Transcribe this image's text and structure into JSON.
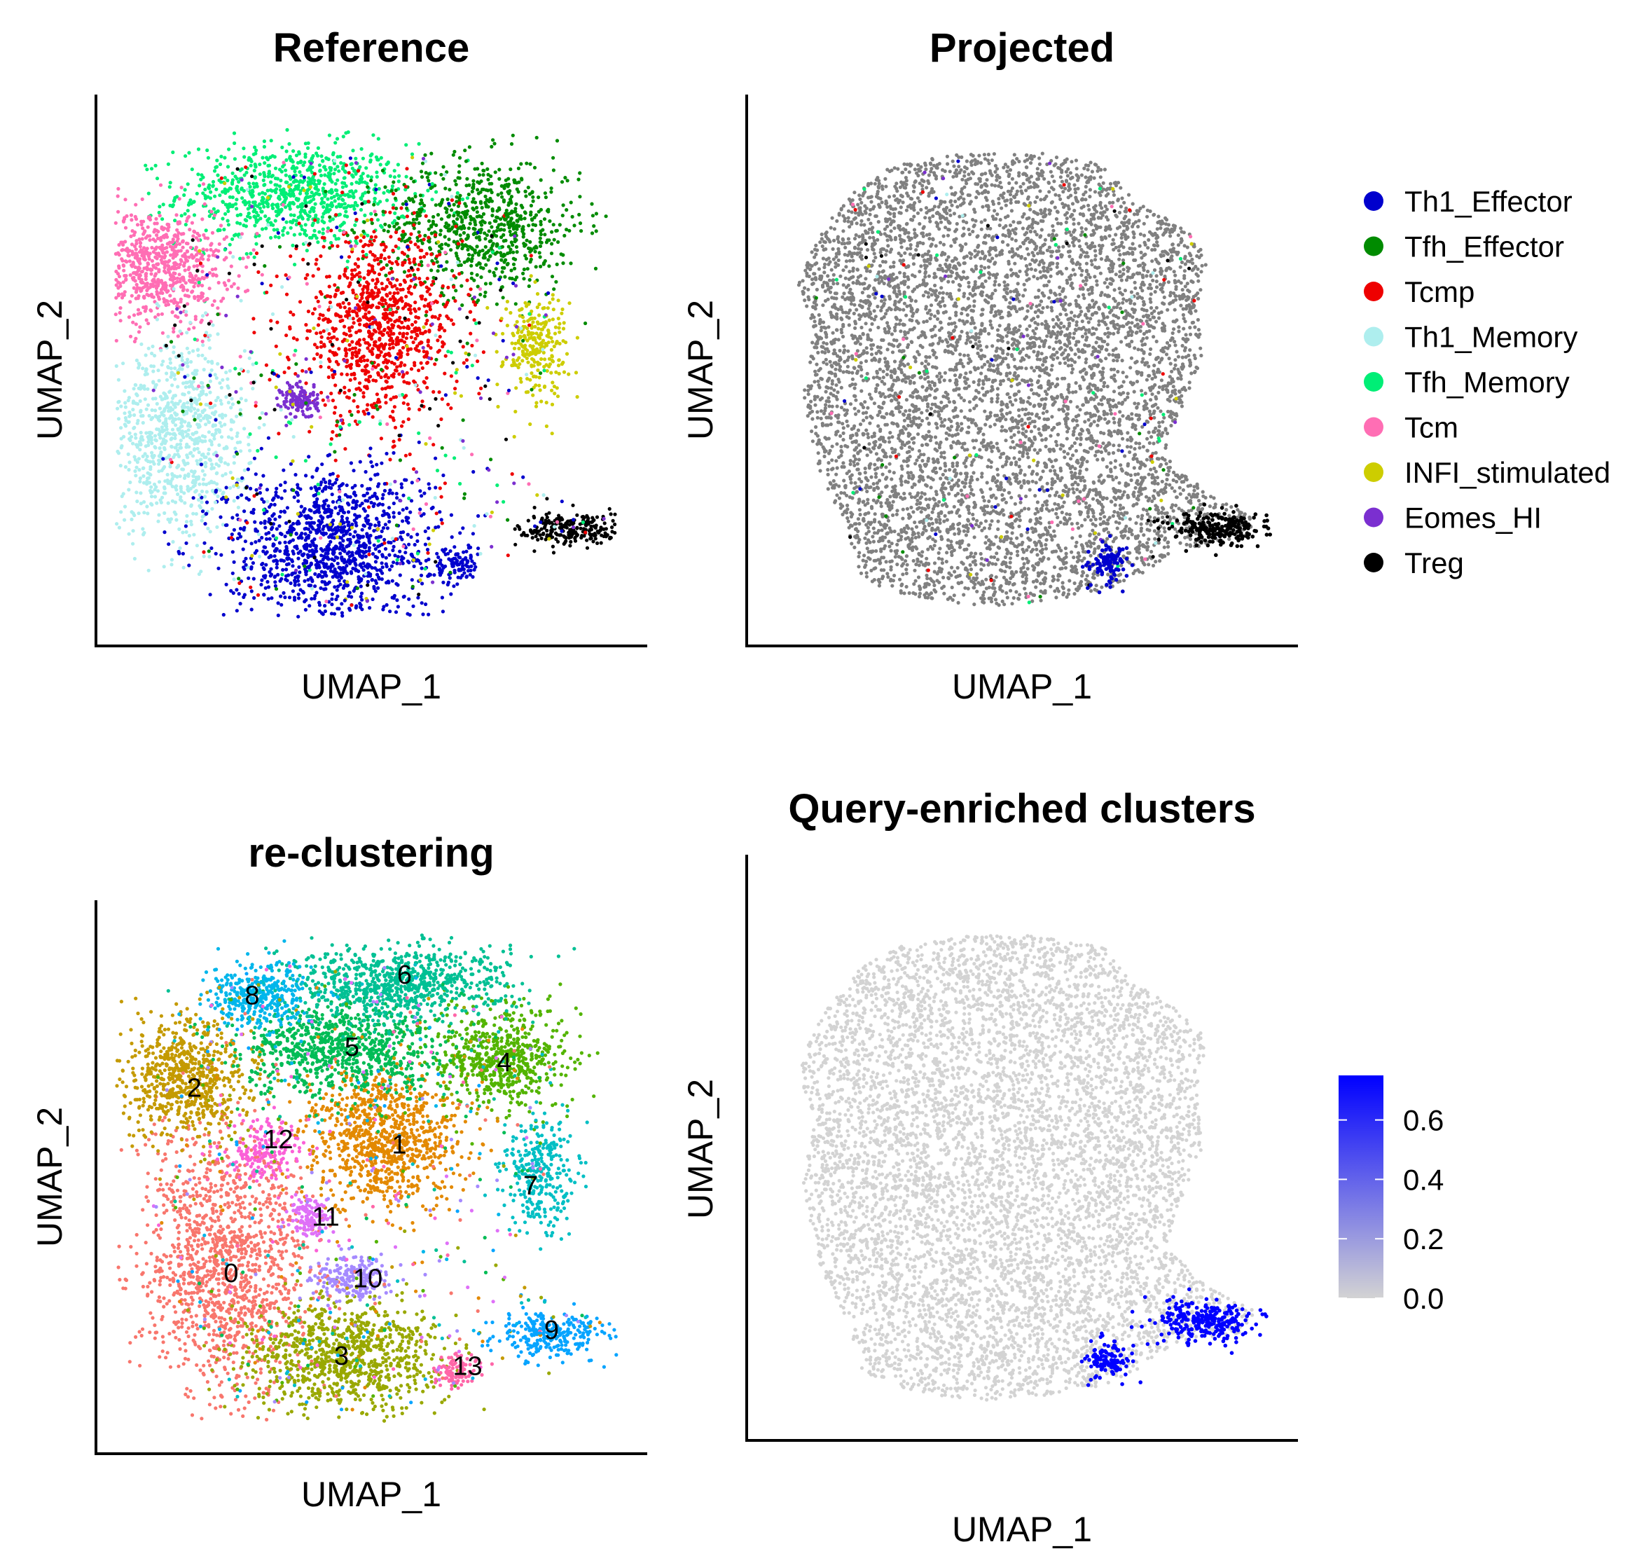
{
  "chart_data": [
    {
      "type": "scatter",
      "title": "Reference",
      "xlabel": "UMAP_1",
      "ylabel": "UMAP_2",
      "color_by": "celltype",
      "grid": false,
      "ticks": false,
      "regions": [
        {
          "category": "Tfh_Memory",
          "cx": 0.36,
          "cy": 0.84,
          "rx": 0.2,
          "ry": 0.09,
          "n": 850
        },
        {
          "category": "Tfh_Effector",
          "cx": 0.72,
          "cy": 0.78,
          "rx": 0.17,
          "ry": 0.12,
          "n": 750
        },
        {
          "category": "Tcm",
          "cx": 0.1,
          "cy": 0.7,
          "rx": 0.12,
          "ry": 0.1,
          "n": 650
        },
        {
          "category": "Tcmp",
          "cx": 0.52,
          "cy": 0.58,
          "rx": 0.14,
          "ry": 0.16,
          "n": 950
        },
        {
          "category": "INFI_stimulated",
          "cx": 0.82,
          "cy": 0.55,
          "rx": 0.055,
          "ry": 0.09,
          "n": 260
        },
        {
          "category": "Eomes_HI",
          "cx": 0.37,
          "cy": 0.44,
          "rx": 0.032,
          "ry": 0.032,
          "n": 130
        },
        {
          "category": "Th1_Memory",
          "cx": 0.14,
          "cy": 0.37,
          "rx": 0.12,
          "ry": 0.17,
          "n": 850
        },
        {
          "category": "Th1_Effector",
          "cx": 0.43,
          "cy": 0.16,
          "rx": 0.18,
          "ry": 0.14,
          "n": 1150
        },
        {
          "category": "Th1_Effector",
          "cx": 0.67,
          "cy": 0.12,
          "rx": 0.035,
          "ry": 0.035,
          "n": 90
        },
        {
          "category": "Treg",
          "cx": 0.89,
          "cy": 0.19,
          "rx": 0.09,
          "ry": 0.03,
          "n": 230
        }
      ]
    },
    {
      "type": "scatter",
      "title": "Projected",
      "xlabel": "UMAP_1",
      "ylabel": "UMAP_2",
      "color_by": "projected celltype",
      "grid": false,
      "ticks": false,
      "background_color": "#808080",
      "highlight_regions": [
        {
          "category": "Treg",
          "cx": 0.89,
          "cy": 0.19,
          "rx": 0.09,
          "ry": 0.03,
          "n": 230
        },
        {
          "category": "Th1_Effector",
          "cx": 0.67,
          "cy": 0.12,
          "rx": 0.035,
          "ry": 0.035,
          "n": 100
        }
      ]
    },
    {
      "type": "scatter",
      "title": "re-clustering",
      "xlabel": "UMAP_1",
      "ylabel": "UMAP_2",
      "color_by": "cluster",
      "grid": false,
      "ticks": false,
      "regions": [
        {
          "cluster": "0",
          "cx": 0.23,
          "cy": 0.33,
          "rx": 0.15,
          "ry": 0.23,
          "n": 1300
        },
        {
          "cluster": "1",
          "cx": 0.53,
          "cy": 0.57,
          "rx": 0.13,
          "ry": 0.12,
          "n": 900
        },
        {
          "cluster": "2",
          "cx": 0.16,
          "cy": 0.69,
          "rx": 0.11,
          "ry": 0.1,
          "n": 700
        },
        {
          "cluster": "3",
          "cx": 0.45,
          "cy": 0.15,
          "rx": 0.17,
          "ry": 0.1,
          "n": 900
        },
        {
          "cluster": "4",
          "cx": 0.75,
          "cy": 0.73,
          "rx": 0.12,
          "ry": 0.09,
          "n": 600
        },
        {
          "cluster": "5",
          "cx": 0.45,
          "cy": 0.74,
          "rx": 0.17,
          "ry": 0.08,
          "n": 800
        },
        {
          "cluster": "6",
          "cx": 0.55,
          "cy": 0.87,
          "rx": 0.19,
          "ry": 0.07,
          "n": 800
        },
        {
          "cluster": "7",
          "cx": 0.83,
          "cy": 0.5,
          "rx": 0.06,
          "ry": 0.1,
          "n": 300
        },
        {
          "cluster": "8",
          "cx": 0.29,
          "cy": 0.85,
          "rx": 0.09,
          "ry": 0.06,
          "n": 350
        },
        {
          "cluster": "9",
          "cx": 0.85,
          "cy": 0.19,
          "rx": 0.09,
          "ry": 0.04,
          "n": 250
        },
        {
          "cluster": "10",
          "cx": 0.47,
          "cy": 0.3,
          "rx": 0.06,
          "ry": 0.04,
          "n": 200
        },
        {
          "cluster": "11",
          "cx": 0.39,
          "cy": 0.42,
          "rx": 0.035,
          "ry": 0.035,
          "n": 130
        },
        {
          "cluster": "12",
          "cx": 0.3,
          "cy": 0.55,
          "rx": 0.07,
          "ry": 0.05,
          "n": 180
        },
        {
          "cluster": "13",
          "cx": 0.67,
          "cy": 0.12,
          "rx": 0.04,
          "ry": 0.03,
          "n": 100
        }
      ],
      "cluster_labels": [
        {
          "text": "0",
          "x": 0.24,
          "y": 0.31
        },
        {
          "text": "1",
          "x": 0.56,
          "y": 0.56
        },
        {
          "text": "2",
          "x": 0.17,
          "y": 0.67
        },
        {
          "text": "3",
          "x": 0.45,
          "y": 0.15
        },
        {
          "text": "4",
          "x": 0.76,
          "y": 0.72
        },
        {
          "text": "5",
          "x": 0.47,
          "y": 0.75
        },
        {
          "text": "6",
          "x": 0.57,
          "y": 0.89
        },
        {
          "text": "7",
          "x": 0.81,
          "y": 0.48
        },
        {
          "text": "8",
          "x": 0.28,
          "y": 0.85
        },
        {
          "text": "9",
          "x": 0.85,
          "y": 0.2
        },
        {
          "text": "10",
          "x": 0.5,
          "y": 0.3
        },
        {
          "text": "11",
          "x": 0.42,
          "y": 0.42
        },
        {
          "text": "12",
          "x": 0.33,
          "y": 0.57
        },
        {
          "text": "13",
          "x": 0.69,
          "y": 0.13
        }
      ]
    },
    {
      "type": "scatter",
      "title": "Query-enriched clusters",
      "xlabel": "UMAP_1",
      "ylabel": "UMAP_2",
      "color_by": "enrichment",
      "grid": false,
      "ticks": false,
      "background_color": "#d3d3d3",
      "colorbar": {
        "min": 0.0,
        "max": 0.75,
        "low_color": "#d3d3d3",
        "high_color": "#0000ff",
        "ticks": [
          "0.0",
          "0.2",
          "0.4",
          "0.6"
        ]
      },
      "enriched_regions": [
        {
          "name": "cluster 9",
          "cx": 0.85,
          "cy": 0.19,
          "rx": 0.09,
          "ry": 0.035,
          "n": 260,
          "value": 0.7
        },
        {
          "name": "cluster 13",
          "cx": 0.67,
          "cy": 0.12,
          "rx": 0.04,
          "ry": 0.035,
          "n": 120,
          "value": 0.7
        }
      ]
    }
  ],
  "legend": {
    "position": "right",
    "entries": [
      {
        "label": "Th1_Effector",
        "color": "#0000cd"
      },
      {
        "label": "Tfh_Effector",
        "color": "#008b00"
      },
      {
        "label": "Tcmp",
        "color": "#ee0000"
      },
      {
        "label": "Th1_Memory",
        "color": "#aeeeee"
      },
      {
        "label": "Tfh_Memory",
        "color": "#00ee76"
      },
      {
        "label": "Tcm",
        "color": "#ff6eb4"
      },
      {
        "label": "INFI_stimulated",
        "color": "#cdcd00"
      },
      {
        "label": "Eomes_HI",
        "color": "#7b2fd0"
      },
      {
        "label": "Treg",
        "color": "#000000"
      }
    ]
  },
  "cluster_colors": {
    "0": "#f8766d",
    "1": "#e38900",
    "2": "#c49a00",
    "3": "#99a800",
    "4": "#53b400",
    "5": "#00bc56",
    "6": "#00c094",
    "7": "#00bfc4",
    "8": "#00b6eb",
    "9": "#06a4ff",
    "10": "#a58aff",
    "11": "#df70f8",
    "12": "#fb61d7",
    "13": "#ff66a8"
  }
}
